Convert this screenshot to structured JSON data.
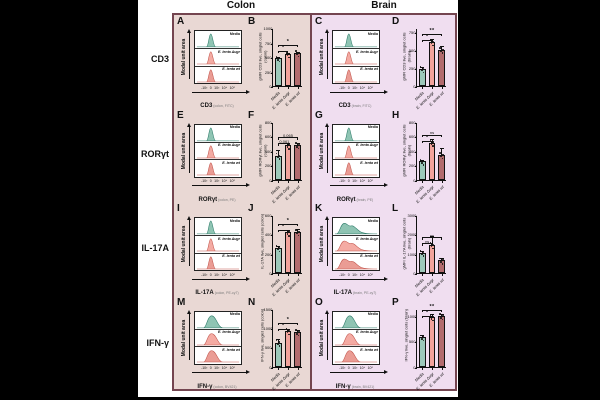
{
  "figure": {
    "columns": [
      {
        "title": "Colon"
      },
      {
        "title": "Brain"
      }
    ],
    "categories": [
      "Media",
      "E. lenta Δugr",
      "E. lenta wt"
    ],
    "colors": {
      "figure_border": "#744550",
      "colon_bg": "#e9d8d4",
      "brain_bg": "#f0def0",
      "teal_bar": "#9cc9ba",
      "pink_bar": "#f2a39c",
      "rose_bar": "#b26b6e",
      "teal_fill": "#8fc4b3",
      "teal_stroke": "#2f7d6b",
      "pink_fill": "#f4aba3",
      "pink_stroke": "#c2564d",
      "rose_fill": "#ea9c94",
      "rose_stroke": "#b04f49"
    },
    "rows": [
      {
        "label": "CD3",
        "colon": {
          "flow": {
            "letter": "A",
            "ylabel": "Modal unit area",
            "series": [
              {
                "label": "Media"
              },
              {
                "label": "E. lenta Δugr"
              },
              {
                "label": "E. lenta wt"
              }
            ],
            "xticks": "-10³ 0 10³ 10⁴ 10⁵",
            "xlabel": "CD3",
            "xdetail": "(colon, FITC)",
            "shape": "narrow"
          },
          "bar": {
            "letter": "B",
            "ylabel": "gMFI CD3 live, singlet cells (colon)",
            "yticks": [
              0,
              250,
              500,
              750,
              1000
            ],
            "ylim": 1000,
            "values": [
              480,
              555,
              570
            ],
            "errors": [
              25,
              20,
              30
            ],
            "sig_low": "*",
            "sig_high": "*"
          }
        },
        "brain": {
          "flow": {
            "letter": "C",
            "ylabel": "Modal unit area",
            "series": [
              {
                "label": "Media"
              },
              {
                "label": "E. lenta Δugr"
              },
              {
                "label": "E. lenta wt"
              }
            ],
            "xticks": "-10³ 0 10³ 10⁴ 10⁵",
            "xlabel": "CD3",
            "xdetail": "(brain, FITC)",
            "shape": "narrow"
          },
          "bar": {
            "letter": "D",
            "ylabel": "gMFI CD3 live, singlet cells (brain)",
            "yticks": [
              0,
              250,
              500,
              750
            ],
            "ylim": 800,
            "values": [
              235,
              610,
              500
            ],
            "errors": [
              30,
              45,
              60
            ],
            "sig_low": "*",
            "sig_high": "**"
          }
        }
      },
      {
        "label": "RORγt",
        "colon": {
          "flow": {
            "letter": "E",
            "ylabel": "Modal unit area",
            "series": [
              {
                "label": "Media"
              },
              {
                "label": "E. lenta Δugr"
              },
              {
                "label": "E. lenta wt"
              }
            ],
            "xticks": "-10³ 0 10³ 10⁴ 10⁵",
            "xlabel": "RORγt",
            "xdetail": "(colon, PE)",
            "shape": "narrow"
          },
          "bar": {
            "letter": "F",
            "ylabel": "gMFI RORγt live, singlet cells (colon)",
            "yticks": [
              0,
              200,
              400,
              600,
              800
            ],
            "ylim": 800,
            "values": [
              330,
              470,
              475
            ],
            "errors": [
              80,
              35,
              30
            ],
            "sig_low": "0.061",
            "sig_high": "0.065"
          }
        },
        "brain": {
          "flow": {
            "letter": "G",
            "ylabel": "Modal unit area",
            "series": [
              {
                "label": "Media"
              },
              {
                "label": "E. lenta Δugr"
              },
              {
                "label": "E. lenta wt"
              }
            ],
            "xticks": "-10³ 0 10³ 10⁴ 10⁵",
            "xlabel": "RORγt",
            "xdetail": "(brain, PE)",
            "shape": "narrow"
          },
          "bar": {
            "letter": "H",
            "ylabel": "gMFI RORγt live, singlet cells (brain)",
            "yticks": [
              0,
              200,
              400,
              600,
              800
            ],
            "ylim": 800,
            "values": [
              250,
              510,
              340
            ],
            "errors": [
              25,
              55,
              95
            ],
            "sig_low": "*",
            "sig_high": "ns"
          }
        }
      },
      {
        "label": "IL-17A",
        "colon": {
          "flow": {
            "letter": "I",
            "ylabel": "Modal unit area",
            "series": [
              {
                "label": "Media"
              },
              {
                "label": "E. lenta Δugr"
              },
              {
                "label": "E. lenta wt"
              }
            ],
            "xticks": "-10³ 0 10³ 10⁴ 10⁵",
            "xlabel": "IL-17A",
            "xdetail": "(colon, PE-cy7)",
            "shape": "narrow"
          },
          "bar": {
            "letter": "J",
            "ylabel": "IL-17A live, singlet cells (colon)",
            "yticks": [
              0,
              200,
              400,
              600
            ],
            "ylim": 600,
            "values": [
              260,
              420,
              425
            ],
            "errors": [
              20,
              30,
              30
            ],
            "sig_low": "*",
            "sig_high": "*"
          }
        },
        "brain": {
          "flow": {
            "letter": "K",
            "ylabel": "Modal unit area",
            "series": [
              {
                "label": "Media"
              },
              {
                "label": "E. lenta Δugr"
              },
              {
                "label": "E. lenta wt"
              }
            ],
            "xticks": "-10³ 0 10³ 10⁴ 10⁵",
            "xlabel": "IL-17A",
            "xdetail": "(brain, PE-cy7)",
            "shape": "broad"
          },
          "bar": {
            "letter": "L",
            "ylabel": "gMFI IL-17A live, singlet cells (brain)",
            "yticks": [
              0,
              1000,
              2000,
              3000
            ],
            "ylim": 3000,
            "values": [
              1050,
              1450,
              650
            ],
            "errors": [
              130,
              500,
              160
            ],
            "sig_low": "ns",
            "sig_high": "ns"
          }
        }
      },
      {
        "label": "IFN-γ",
        "colon": {
          "flow": {
            "letter": "M",
            "ylabel": "Modal unit area",
            "series": [
              {
                "label": "Media"
              },
              {
                "label": "E. lenta Δugr"
              },
              {
                "label": "E. lenta wt"
              }
            ],
            "xticks": "-10³ 0 10³ 10⁴ 10⁵",
            "xlabel": "IFN-γ",
            "xdetail": "(colon, BV421)",
            "shape": "medium"
          },
          "bar": {
            "letter": "N",
            "ylabel": "IFN-γ live, singlet cells (colon)",
            "yticks": [
              0,
              500,
              1000,
              1500
            ],
            "ylim": 1500,
            "values": [
              620,
              920,
              890
            ],
            "errors": [
              90,
              60,
              60
            ],
            "sig_low": "*",
            "sig_high": "*"
          }
        },
        "brain": {
          "flow": {
            "letter": "O",
            "ylabel": "Modal unit area",
            "series": [
              {
                "label": "Media"
              },
              {
                "label": "E. lenta Δugr"
              },
              {
                "label": "E. lenta wt"
              }
            ],
            "xticks": "-10³ 0 10³ 10⁴ 10⁵",
            "xlabel": "IFN-γ",
            "xdetail": "(brain, BV421)",
            "shape": "medium"
          },
          "bar": {
            "letter": "P",
            "ylabel": "IFN-γ live, singlet cells (brain)",
            "yticks": [
              0,
              500,
              1000
            ],
            "ylim": 1150,
            "values": [
              580,
              980,
              1000
            ],
            "errors": [
              45,
              60,
              55
            ],
            "sig_low": "*",
            "sig_high": "**"
          }
        }
      }
    ]
  },
  "chart_data": [
    {
      "panel": "B",
      "type": "bar",
      "title": "gMFI CD3 live, singlet cells (colon)",
      "categories": [
        "Media",
        "E. lenta Δugr",
        "E. lenta wt"
      ],
      "values": [
        480,
        555,
        570
      ],
      "ylim": [
        0,
        1000
      ],
      "yticks": [
        0,
        250,
        500,
        750,
        1000
      ],
      "significance": {
        "media_vs_dugr": "*",
        "media_vs_wt": "*"
      }
    },
    {
      "panel": "D",
      "type": "bar",
      "title": "gMFI CD3 live, singlet cells (brain)",
      "categories": [
        "Media",
        "E. lenta Δugr",
        "E. lenta wt"
      ],
      "values": [
        235,
        610,
        500
      ],
      "ylim": [
        0,
        800
      ],
      "yticks": [
        0,
        250,
        500,
        750
      ],
      "significance": {
        "media_vs_dugr": "*",
        "media_vs_wt": "**"
      }
    },
    {
      "panel": "F",
      "type": "bar",
      "title": "gMFI RORγt live, singlet cells (colon)",
      "categories": [
        "Media",
        "E. lenta Δugr",
        "E. lenta wt"
      ],
      "values": [
        330,
        470,
        475
      ],
      "ylim": [
        0,
        800
      ],
      "yticks": [
        0,
        200,
        400,
        600,
        800
      ],
      "significance": {
        "media_vs_dugr": "0.061",
        "media_vs_wt": "0.065"
      }
    },
    {
      "panel": "H",
      "type": "bar",
      "title": "gMFI RORγt live, singlet cells (brain)",
      "categories": [
        "Media",
        "E. lenta Δugr",
        "E. lenta wt"
      ],
      "values": [
        250,
        510,
        340
      ],
      "ylim": [
        0,
        800
      ],
      "yticks": [
        0,
        200,
        400,
        600,
        800
      ],
      "significance": {
        "media_vs_dugr": "*",
        "media_vs_wt": "ns"
      }
    },
    {
      "panel": "J",
      "type": "bar",
      "title": "IL-17A live, singlet cells (colon)",
      "categories": [
        "Media",
        "E. lenta Δugr",
        "E. lenta wt"
      ],
      "values": [
        260,
        420,
        425
      ],
      "ylim": [
        0,
        600
      ],
      "yticks": [
        0,
        200,
        400,
        600
      ],
      "significance": {
        "media_vs_dugr": "*",
        "media_vs_wt": "*"
      }
    },
    {
      "panel": "L",
      "type": "bar",
      "title": "gMFI IL-17A live, singlet cells (brain)",
      "categories": [
        "Media",
        "E. lenta Δugr",
        "E. lenta wt"
      ],
      "values": [
        1050,
        1450,
        650
      ],
      "ylim": [
        0,
        3000
      ],
      "yticks": [
        0,
        1000,
        2000,
        3000
      ],
      "significance": {
        "media_vs_dugr": "ns",
        "media_vs_wt": "ns"
      }
    },
    {
      "panel": "N",
      "type": "bar",
      "title": "IFN-γ live, singlet cells (colon)",
      "categories": [
        "Media",
        "E. lenta Δugr",
        "E. lenta wt"
      ],
      "values": [
        620,
        920,
        890
      ],
      "ylim": [
        0,
        1500
      ],
      "yticks": [
        0,
        500,
        1000,
        1500
      ],
      "significance": {
        "media_vs_dugr": "*",
        "media_vs_wt": "*"
      }
    },
    {
      "panel": "P",
      "type": "bar",
      "title": "IFN-γ live, singlet cells (brain)",
      "categories": [
        "Media",
        "E. lenta Δugr",
        "E. lenta wt"
      ],
      "values": [
        580,
        980,
        1000
      ],
      "ylim": [
        0,
        1150
      ],
      "yticks": [
        0,
        500,
        1000
      ],
      "significance": {
        "media_vs_dugr": "*",
        "media_vs_wt": "**"
      }
    }
  ]
}
